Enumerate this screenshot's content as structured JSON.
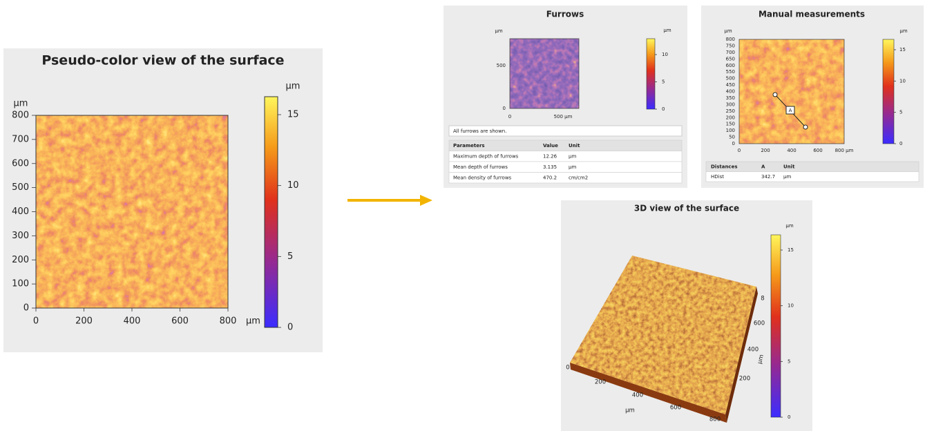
{
  "pseudo_color": {
    "title": "Pseudo-color view of the surface",
    "y_unit": "µm",
    "y_ticks": [
      "0",
      "100",
      "200",
      "300",
      "400",
      "500",
      "600",
      "700",
      "800"
    ],
    "x_ticks": [
      "0",
      "200",
      "400",
      "600",
      "800"
    ],
    "x_unit": "µm",
    "colorbar_unit": "µm",
    "colorbar_ticks": [
      "0",
      "5",
      "10",
      "15"
    ]
  },
  "furrows": {
    "title": "Furrows",
    "y_unit": "µm",
    "y_ticks": [
      "0",
      "500"
    ],
    "x_ticks": [
      "0",
      "500 µm"
    ],
    "colorbar_unit": "µm",
    "colorbar_ticks": [
      "0",
      "5",
      "10"
    ],
    "note": "All furrows are shown.",
    "table": {
      "header": [
        "Parameters",
        "Value",
        "Unit"
      ],
      "rows": [
        [
          "Maximum depth of furrows",
          "12.26",
          "µm"
        ],
        [
          "Mean depth of furrows",
          "3.135",
          "µm"
        ],
        [
          "Mean density of furrows",
          "470.2",
          "cm/cm2"
        ]
      ]
    }
  },
  "manual_measurements": {
    "title": "Manual measurements",
    "y_unit": "µm",
    "y_ticks": [
      "0",
      "50",
      "100",
      "150",
      "200",
      "250",
      "300",
      "350",
      "400",
      "450",
      "500",
      "550",
      "600",
      "650",
      "700",
      "750",
      "800"
    ],
    "x_ticks": [
      "0",
      "200",
      "400",
      "600",
      "800 µm"
    ],
    "colorbar_unit": "µm",
    "colorbar_ticks": [
      "0",
      "5",
      "10",
      "15"
    ],
    "marker": "A",
    "table": {
      "header": [
        "Distances",
        "A",
        "Unit"
      ],
      "rows": [
        [
          "HDist",
          "342.7",
          "µm"
        ]
      ]
    }
  },
  "view_3d": {
    "title": "3D view of the surface",
    "x_ticks": [
      "0",
      "200",
      "400",
      "600",
      "800"
    ],
    "x_unit": "µm",
    "y_ticks": [
      "200",
      "400",
      "600",
      "8"
    ],
    "y_unit": "µm",
    "colorbar_unit": "µm",
    "colorbar_ticks": [
      "0",
      "5",
      "10",
      "15"
    ]
  }
}
